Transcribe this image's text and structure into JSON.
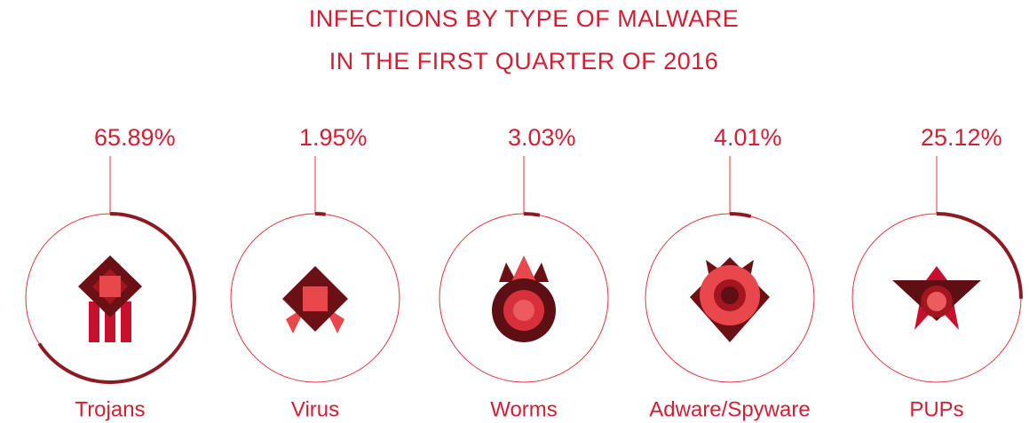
{
  "chart_data": {
    "type": "ring",
    "title": [
      "INFECTIONS BY TYPE OF MALWARE",
      "IN THE FIRST QUARTER OF 2016"
    ],
    "categories": [
      "Trojans",
      "Virus",
      "Worms",
      "Adware/Spyware",
      "PUPs"
    ],
    "values": [
      65.89,
      1.95,
      3.03,
      4.01,
      25.12
    ],
    "value_labels": [
      "65.89%",
      "1.95%",
      "3.03%",
      "4.01%",
      "25.12%"
    ],
    "color": "#8c1a22",
    "ring_color": "#e0343f"
  }
}
